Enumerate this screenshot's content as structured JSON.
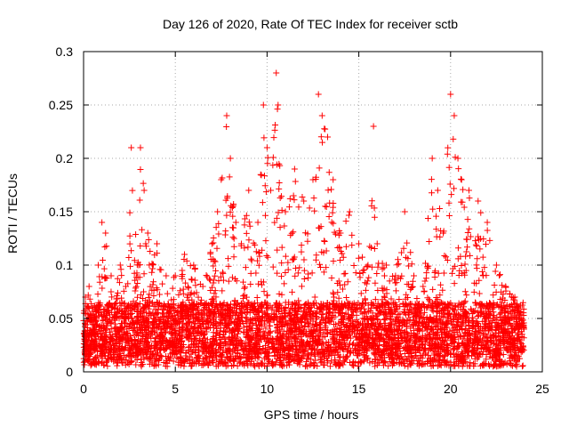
{
  "chart_data": {
    "type": "scatter",
    "title": "Day 126 of 2020, Rate Of TEC Index for receiver sctb",
    "xlabel": "GPS time / hours",
    "ylabel": "ROTI / TECUs",
    "xlim": [
      0,
      25
    ],
    "ylim": [
      0,
      0.3
    ],
    "x_ticks": [
      0,
      5,
      10,
      15,
      20,
      25
    ],
    "x_tick_labels": [
      "0",
      "5",
      "10",
      "15",
      "20",
      "25"
    ],
    "y_ticks": [
      0,
      0.05,
      0.1,
      0.15,
      0.2,
      0.25,
      0.3
    ],
    "y_tick_labels": [
      "0",
      "0.05",
      "0.1",
      "0.15",
      "0.2",
      "0.25",
      "0.3"
    ],
    "grid": true,
    "marker": "plus",
    "marker_color": "#ff0000",
    "series": [
      {
        "name": "ROTI",
        "sampled_points": [
          [
            0.1,
            0.07
          ],
          [
            0.3,
            0.08
          ],
          [
            0.5,
            0.04
          ],
          [
            0.8,
            0.1
          ],
          [
            1.0,
            0.14
          ],
          [
            1.2,
            0.13
          ],
          [
            1.5,
            0.09
          ],
          [
            2.0,
            0.1
          ],
          [
            2.3,
            0.08
          ],
          [
            2.6,
            0.21
          ],
          [
            3.0,
            0.1
          ],
          [
            3.1,
            0.21
          ],
          [
            3.3,
            0.17
          ],
          [
            3.5,
            0.13
          ],
          [
            4.0,
            0.12
          ],
          [
            4.5,
            0.09
          ],
          [
            5.0,
            0.09
          ],
          [
            5.5,
            0.11
          ],
          [
            6.0,
            0.1
          ],
          [
            6.5,
            0.08
          ],
          [
            7.0,
            0.12
          ],
          [
            7.3,
            0.15
          ],
          [
            7.5,
            0.18
          ],
          [
            7.8,
            0.24
          ],
          [
            8.0,
            0.2
          ],
          [
            8.3,
            0.14
          ],
          [
            8.6,
            0.12
          ],
          [
            9.0,
            0.17
          ],
          [
            9.5,
            0.14
          ],
          [
            9.8,
            0.25
          ],
          [
            10.0,
            0.21
          ],
          [
            10.2,
            0.17
          ],
          [
            10.5,
            0.28
          ],
          [
            10.6,
            0.25
          ],
          [
            11.0,
            0.15
          ],
          [
            11.5,
            0.19
          ],
          [
            12.0,
            0.16
          ],
          [
            12.5,
            0.18
          ],
          [
            12.8,
            0.26
          ],
          [
            13.0,
            0.24
          ],
          [
            13.3,
            0.22
          ],
          [
            13.6,
            0.18
          ],
          [
            14.0,
            0.13
          ],
          [
            14.5,
            0.15
          ],
          [
            15.0,
            0.12
          ],
          [
            15.5,
            0.1
          ],
          [
            15.8,
            0.23
          ],
          [
            16.0,
            0.12
          ],
          [
            16.5,
            0.1
          ],
          [
            17.0,
            0.09
          ],
          [
            17.5,
            0.15
          ],
          [
            18.0,
            0.09
          ],
          [
            18.5,
            0.08
          ],
          [
            19.0,
            0.2
          ],
          [
            19.3,
            0.17
          ],
          [
            19.6,
            0.13
          ],
          [
            20.0,
            0.26
          ],
          [
            20.2,
            0.24
          ],
          [
            20.4,
            0.2
          ],
          [
            20.6,
            0.18
          ],
          [
            21.0,
            0.17
          ],
          [
            21.5,
            0.16
          ],
          [
            22.0,
            0.14
          ],
          [
            22.5,
            0.1
          ],
          [
            23.0,
            0.08
          ],
          [
            23.5,
            0.07
          ],
          [
            24.0,
            0.04
          ]
        ]
      }
    ]
  }
}
